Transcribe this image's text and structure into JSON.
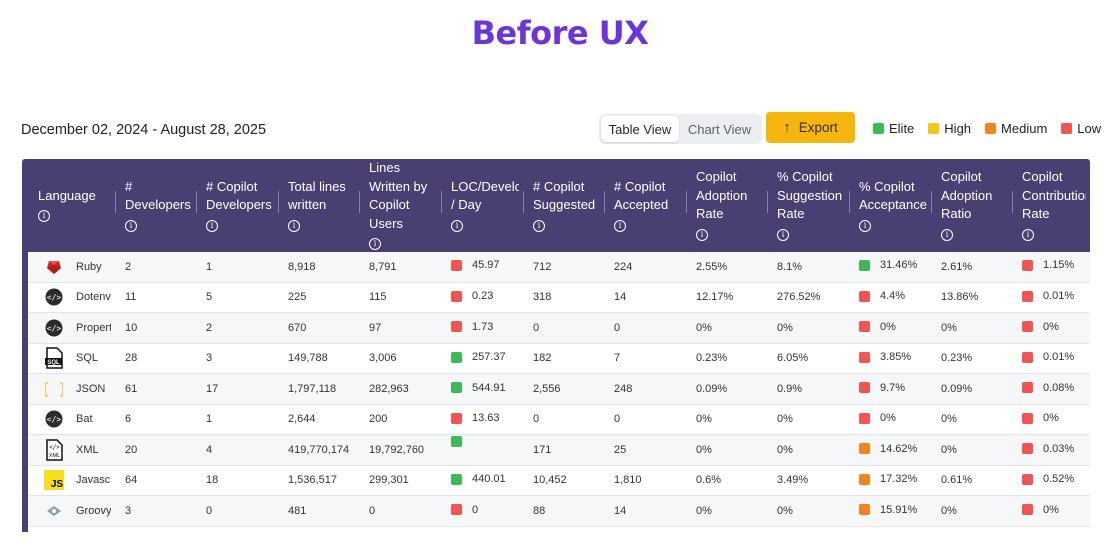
{
  "page": {
    "title": "Before UX",
    "date_range": "December 02, 2024 - August 28, 2025"
  },
  "view_toggle": {
    "table": "Table View",
    "chart": "Chart View",
    "active": "table"
  },
  "export_label": "Export",
  "legend": [
    {
      "label": "Elite",
      "color": "#3cba54"
    },
    {
      "label": "High",
      "color": "#f5c518"
    },
    {
      "label": "Medium",
      "color": "#f5841f"
    },
    {
      "label": "Low",
      "color": "#f25454"
    }
  ],
  "columns": [
    {
      "lines": [
        "Language"
      ]
    },
    {
      "lines": [
        "#",
        "Developers"
      ]
    },
    {
      "lines": [
        "# Copilot",
        "Developers"
      ]
    },
    {
      "lines": [
        "Total lines",
        "written"
      ]
    },
    {
      "lines": [
        "Lines",
        "Written by",
        "Copilot",
        "Users"
      ]
    },
    {
      "lines": [
        "LOC/Developer",
        "/ Day"
      ]
    },
    {
      "lines": [
        "# Copilot",
        "Suggested"
      ]
    },
    {
      "lines": [
        "# Copilot",
        "Accepted"
      ]
    },
    {
      "lines": [
        "Copilot",
        "Adoption",
        "Rate"
      ]
    },
    {
      "lines": [
        "% Copilot",
        "Suggestion",
        "Rate"
      ]
    },
    {
      "lines": [
        "% Copilot",
        "Acceptance"
      ]
    },
    {
      "lines": [
        "Copilot",
        "Adoption",
        "Ratio"
      ]
    },
    {
      "lines": [
        "Copilot",
        "Contribution",
        "Rate"
      ]
    }
  ],
  "rows": [
    {
      "icon": "ruby-icon",
      "language": "Ruby",
      "developers": "2",
      "copilot_developers": "1",
      "total_lines": "8,918",
      "lines_copilot": "8,791",
      "loc_day": "45.97",
      "loc_level": "low",
      "suggested": "712",
      "accepted": "224",
      "adoption_rate": "2.55%",
      "suggestion_rate": "8.1%",
      "acceptance": "31.46%",
      "acceptance_level": "elite",
      "adoption_ratio": "2.61%",
      "contribution_rate": "1.15%",
      "contribution_level": "low"
    },
    {
      "icon": "code-icon",
      "language": "Dotenv",
      "developers": "11",
      "copilot_developers": "5",
      "total_lines": "225",
      "lines_copilot": "115",
      "loc_day": "0.23",
      "loc_level": "low",
      "suggested": "318",
      "accepted": "14",
      "adoption_rate": "12.17%",
      "suggestion_rate": "276.52%",
      "acceptance": "4.4%",
      "acceptance_level": "low",
      "adoption_ratio": "13.86%",
      "contribution_rate": "0.01%",
      "contribution_level": "low"
    },
    {
      "icon": "code-icon",
      "language": "Properties",
      "developers": "10",
      "copilot_developers": "2",
      "total_lines": "670",
      "lines_copilot": "97",
      "loc_day": "1.73",
      "loc_level": "low",
      "suggested": "0",
      "accepted": "0",
      "adoption_rate": "0%",
      "suggestion_rate": "0%",
      "acceptance": "0%",
      "acceptance_level": "low",
      "adoption_ratio": "0%",
      "contribution_rate": "0%",
      "contribution_level": "low"
    },
    {
      "icon": "sql-file-icon",
      "language": "SQL",
      "developers": "28",
      "copilot_developers": "3",
      "total_lines": "149,788",
      "lines_copilot": "3,006",
      "loc_day": "257.37",
      "loc_level": "elite",
      "suggested": "182",
      "accepted": "7",
      "adoption_rate": "0.23%",
      "suggestion_rate": "6.05%",
      "acceptance": "3.85%",
      "acceptance_level": "low",
      "adoption_ratio": "0.23%",
      "contribution_rate": "0.01%",
      "contribution_level": "low"
    },
    {
      "icon": "json-icon",
      "language": "JSON",
      "developers": "61",
      "copilot_developers": "17",
      "total_lines": "1,797,118",
      "lines_copilot": "282,963",
      "loc_day": "544.91",
      "loc_level": "elite",
      "suggested": "2,556",
      "accepted": "248",
      "adoption_rate": "0.09%",
      "suggestion_rate": "0.9%",
      "acceptance": "9.7%",
      "acceptance_level": "low",
      "adoption_ratio": "0.09%",
      "contribution_rate": "0.08%",
      "contribution_level": "low"
    },
    {
      "icon": "code-icon",
      "language": "Bat",
      "developers": "6",
      "copilot_developers": "1",
      "total_lines": "2,644",
      "lines_copilot": "200",
      "loc_day": "13.63",
      "loc_level": "low",
      "suggested": "0",
      "accepted": "0",
      "adoption_rate": "0%",
      "suggestion_rate": "0%",
      "acceptance": "0%",
      "acceptance_level": "low",
      "adoption_ratio": "0%",
      "contribution_rate": "0%",
      "contribution_level": "low"
    },
    {
      "icon": "xml-file-icon",
      "language": "XML",
      "developers": "20",
      "copilot_developers": "4",
      "total_lines": "419,770,174",
      "lines_copilot": "19,792,760",
      "loc_day": "",
      "loc_level": "elite",
      "suggested": "171",
      "accepted": "25",
      "adoption_rate": "0%",
      "suggestion_rate": "0%",
      "acceptance": "14.62%",
      "acceptance_level": "medium",
      "adoption_ratio": "0%",
      "contribution_rate": "0.03%",
      "contribution_level": "low"
    },
    {
      "icon": "javascript-icon",
      "language": "Javascript",
      "developers": "64",
      "copilot_developers": "18",
      "total_lines": "1,536,517",
      "lines_copilot": "299,301",
      "loc_day": "440.01",
      "loc_level": "elite",
      "suggested": "10,452",
      "accepted": "1,810",
      "adoption_rate": "0.6%",
      "suggestion_rate": "3.49%",
      "acceptance": "17.32%",
      "acceptance_level": "medium",
      "adoption_ratio": "0.61%",
      "contribution_rate": "0.52%",
      "contribution_level": "low"
    },
    {
      "icon": "groovy-icon",
      "language": "Groovy",
      "developers": "3",
      "copilot_developers": "0",
      "total_lines": "481",
      "lines_copilot": "0",
      "loc_day": "0",
      "loc_level": "low",
      "suggested": "88",
      "accepted": "14",
      "adoption_rate": "0%",
      "suggestion_rate": "0%",
      "acceptance": "15.91%",
      "acceptance_level": "medium",
      "adoption_ratio": "0%",
      "contribution_rate": "0%",
      "contribution_level": "low"
    },
    {
      "icon": "file-icon",
      "language": "",
      "developers": "",
      "copilot_developers": "",
      "total_lines": "",
      "lines_copilot": "",
      "loc_day": "",
      "loc_level": "",
      "suggested": "",
      "accepted": "",
      "adoption_rate": "",
      "suggestion_rate": "",
      "acceptance": "",
      "acceptance_level": "",
      "adoption_ratio": "",
      "contribution_rate": "",
      "contribution_level": ""
    }
  ]
}
